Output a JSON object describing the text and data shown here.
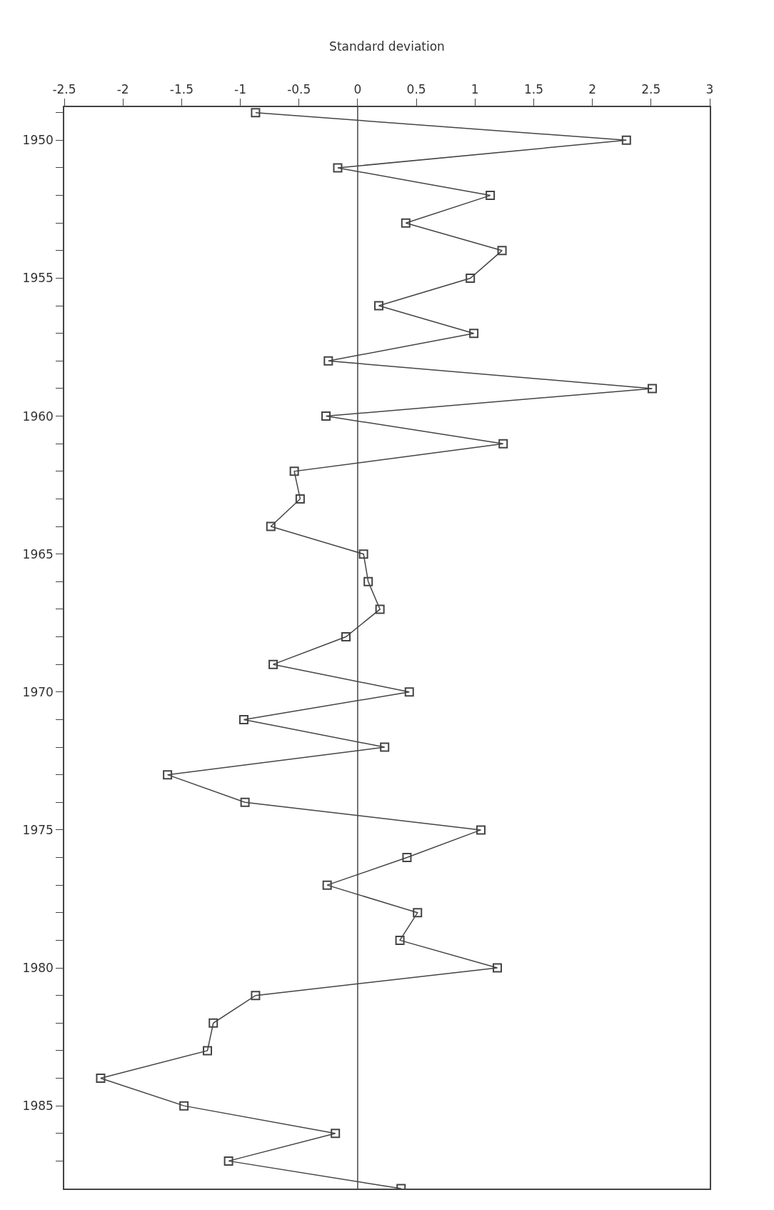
{
  "chart_data": {
    "type": "line",
    "orientation": "horizontal",
    "xlabel": "Standard deviation",
    "x": [
      1949,
      1950,
      1951,
      1952,
      1953,
      1954,
      1955,
      1956,
      1957,
      1958,
      1959,
      1960,
      1961,
      1962,
      1963,
      1964,
      1965,
      1966,
      1967,
      1968,
      1969,
      1970,
      1971,
      1972,
      1973,
      1974,
      1975,
      1976,
      1977,
      1978,
      1979,
      1980,
      1981,
      1982,
      1983,
      1984,
      1985,
      1986,
      1987,
      1988
    ],
    "values": [
      -0.87,
      2.29,
      -0.17,
      1.13,
      0.41,
      1.23,
      0.96,
      0.18,
      0.99,
      -0.25,
      2.51,
      -0.27,
      1.24,
      -0.54,
      -0.49,
      -0.74,
      0.05,
      0.09,
      0.19,
      -0.1,
      -0.72,
      0.44,
      -0.97,
      0.23,
      -1.62,
      -0.96,
      1.05,
      0.42,
      -0.26,
      0.51,
      0.36,
      1.19,
      -0.87,
      -1.23,
      -1.28,
      -2.19,
      -1.48,
      -0.19,
      -1.1,
      0.37
    ],
    "color": "#444444",
    "marker": "square",
    "line_style": "solid",
    "grid": false,
    "xlim": [
      -2.5,
      3
    ],
    "xticks": [
      -2.5,
      -2,
      -1.5,
      -1,
      -0.5,
      0,
      0.5,
      1,
      1.5,
      2,
      2.5,
      3
    ],
    "ylim": [
      1988,
      1948.8
    ],
    "yticks": [
      {
        "value": 1949,
        "label": null
      },
      1950,
      {
        "value": 1951,
        "label": null
      },
      {
        "value": 1952,
        "label": null
      },
      {
        "value": 1953,
        "label": null
      },
      {
        "value": 1954,
        "label": null
      },
      1955,
      {
        "value": 1956,
        "label": null
      },
      {
        "value": 1957,
        "label": null
      },
      {
        "value": 1958,
        "label": null
      },
      {
        "value": 1959,
        "label": null
      },
      1960,
      {
        "value": 1961,
        "label": null
      },
      {
        "value": 1962,
        "label": null
      },
      {
        "value": 1963,
        "label": null
      },
      {
        "value": 1964,
        "label": null
      },
      1965,
      {
        "value": 1966,
        "label": null
      },
      {
        "value": 1967,
        "label": null
      },
      {
        "value": 1968,
        "label": null
      },
      {
        "value": 1969,
        "label": null
      },
      1970,
      {
        "value": 1971,
        "label": null
      },
      {
        "value": 1972,
        "label": null
      },
      {
        "value": 1973,
        "label": null
      },
      {
        "value": 1974,
        "label": null
      },
      1975,
      {
        "value": 1976,
        "label": null
      },
      {
        "value": 1977,
        "label": null
      },
      {
        "value": 1978,
        "label": null
      },
      {
        "value": 1979,
        "label": null
      },
      1980,
      {
        "value": 1981,
        "label": null
      },
      {
        "value": 1982,
        "label": null
      },
      {
        "value": 1983,
        "label": null
      },
      {
        "value": 1984,
        "label": null
      },
      1985,
      {
        "value": 1986,
        "label": null
      },
      {
        "value": 1987,
        "label": null
      }
    ],
    "ref_lines": [
      {
        "axis": "x",
        "value": 0,
        "color": "#444444"
      }
    ]
  }
}
